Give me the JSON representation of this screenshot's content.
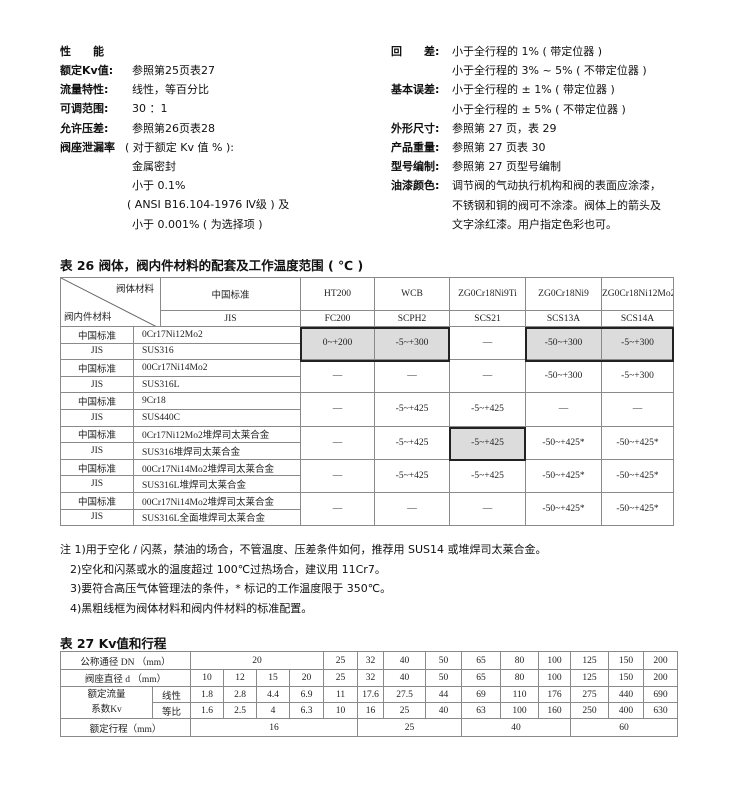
{
  "specs_left": {
    "heading": "性　　能",
    "items": [
      {
        "label": "额定Kv值:",
        "value": "参照第25页表27"
      },
      {
        "label": "流量特性:",
        "value": "线性，等百分比"
      },
      {
        "label": "可调范围:",
        "value": "30 ：1"
      },
      {
        "label": "允许压差:",
        "value": "参照第26页表28"
      },
      {
        "label": "阀座泄漏率",
        "value": "( 对于额定 Kv 值 % ):"
      }
    ],
    "leakage_lines": [
      "金属密封",
      "小于 0.1%",
      "( ANSI B16.104-1976 Ⅳ级 ) 及",
      "小于 0.001% ( 为选择项 )"
    ]
  },
  "specs_right": {
    "items": [
      {
        "label": "回　　差:",
        "lines": [
          "小于全行程的 1% ( 带定位器 )",
          "小于全行程的 3% ~ 5% ( 不带定位器 )"
        ]
      },
      {
        "label": "基本误差:",
        "lines": [
          "小于全行程的 ± 1% ( 带定位器 )",
          "小于全行程的 ± 5% ( 不带定位器 )"
        ]
      },
      {
        "label": "外形尺寸:",
        "lines": [
          "参照第 27 页，表 29"
        ]
      },
      {
        "label": "产品重量:",
        "lines": [
          "参照第 27 页表 30"
        ]
      },
      {
        "label": "型号编制:",
        "lines": [
          "参照第 27 页型号编制"
        ]
      },
      {
        "label": "油漆颜色:",
        "lines": [
          "调节阀的气动执行机构和阀的表面应涂漆，",
          "不锈钢和铜的阀可不涂漆。阀体上的箭头及",
          "文字涂红漆。用户指定色彩也可。"
        ]
      }
    ]
  },
  "table26": {
    "title": "表 26 阀体，阀内件材料的配套及工作温度范围 ( ℃ )",
    "corner_top": "阀体材料",
    "corner_bottom": "阀内件材料",
    "header_cn_label": "中国标准",
    "header_jis_label": "JIS",
    "body_cn": [
      "HT200",
      "WCB",
      "ZG0Cr18Ni9Ti",
      "ZG0Cr18Ni9",
      "ZG0Cr18Ni12Mo2Ti"
    ],
    "body_jis": [
      "FC200",
      "SCPH2",
      "SCS21",
      "SCS13A",
      "SCS14A"
    ],
    "rows": [
      {
        "cn_label": "中国标准",
        "cn": "0Cr17Ni12Mo2",
        "jis_label": "JIS",
        "jis": "SUS316",
        "values": [
          "0~+200",
          "-5~+300",
          "—",
          "-50~+300",
          "-5~+300"
        ],
        "standard": [
          true,
          true,
          false,
          true,
          true
        ]
      },
      {
        "cn_label": "中国标准",
        "cn": "00Cr17Ni14Mo2",
        "jis_label": "JIS",
        "jis": "SUS316L",
        "values": [
          "—",
          "—",
          "—",
          "-50~+300",
          "-5~+300"
        ],
        "standard": [
          false,
          false,
          false,
          false,
          false
        ]
      },
      {
        "cn_label": "中国标准",
        "cn": "9Cr18",
        "jis_label": "JIS",
        "jis": "SUS440C",
        "values": [
          "—",
          "-5~+425",
          "-5~+425",
          "—",
          "—"
        ],
        "standard": [
          false,
          false,
          false,
          false,
          false
        ]
      },
      {
        "cn_label": "中国标准",
        "cn": "0Cr17Ni12Mo2堆焊司太莱合金",
        "jis_label": "JIS",
        "jis": "SUS316堆焊司太莱合金",
        "values": [
          "—",
          "-5~+425",
          "-5~+425",
          "-50~+425*",
          "-50~+425*"
        ],
        "standard": [
          false,
          false,
          true,
          false,
          false
        ]
      },
      {
        "cn_label": "中国标准",
        "cn": "00Cr17Ni14Mo2堆焊司太莱合金",
        "jis_label": "JIS",
        "jis": "SUS316L堆焊司太莱合金",
        "values": [
          "—",
          "-5~+425",
          "-5~+425",
          "-50~+425*",
          "-50~+425*"
        ],
        "standard": [
          false,
          false,
          false,
          false,
          false
        ]
      },
      {
        "cn_label": "中国标准",
        "cn": "00Cr17Ni14Mo2堆焊司太莱合金",
        "jis_label": "JIS",
        "jis": "SUS316L全面堆焊司太莱合金",
        "values": [
          "—",
          "—",
          "—",
          "-50~+425*",
          "-50~+425*"
        ],
        "standard": [
          false,
          false,
          false,
          false,
          false
        ]
      }
    ]
  },
  "notes": [
    "注 1)用于空化 / 闪蒸，禁油的场合，不管温度、压差条件如何，推荐用 SUS14 或堆焊司太莱合金。",
    "2)空化和闪蒸或水的温度超过 100℃过热场合，建议用 11Cr7。",
    "3)要符合高压气体管理法的条件，* 标记的工作温度限于 350℃。",
    "4)黑粗线框为阀体材料和阀内件材料的标准配置。"
  ],
  "table27": {
    "title": "表 27 Kv值和行程",
    "dn_label": "公称通径 DN （mm）",
    "dn": [
      "20",
      "25",
      "32",
      "40",
      "50",
      "65",
      "80",
      "100",
      "125",
      "150",
      "200"
    ],
    "seat_label": "阀座直径 d （mm）",
    "seat": [
      "10",
      "12",
      "15",
      "20",
      "25",
      "32",
      "40",
      "50",
      "65",
      "80",
      "100",
      "125",
      "150",
      "200"
    ],
    "kv_label_1": "额定流量",
    "kv_label_2": "系数Kv",
    "linear_label": "线性",
    "linear": [
      "1.8",
      "2.8",
      "4.4",
      "6.9",
      "11",
      "17.6",
      "27.5",
      "44",
      "69",
      "110",
      "176",
      "275",
      "440",
      "690"
    ],
    "equal_label": "等比",
    "equal": [
      "1.6",
      "2.5",
      "4",
      "6.3",
      "10",
      "16",
      "25",
      "40",
      "63",
      "100",
      "160",
      "250",
      "400",
      "630"
    ],
    "travel_label": "额定行程（mm）",
    "travel": [
      {
        "value": "16",
        "span": 5
      },
      {
        "value": "25",
        "span": 3
      },
      {
        "value": "40",
        "span": 3
      },
      {
        "value": "60",
        "span": 3
      }
    ]
  }
}
